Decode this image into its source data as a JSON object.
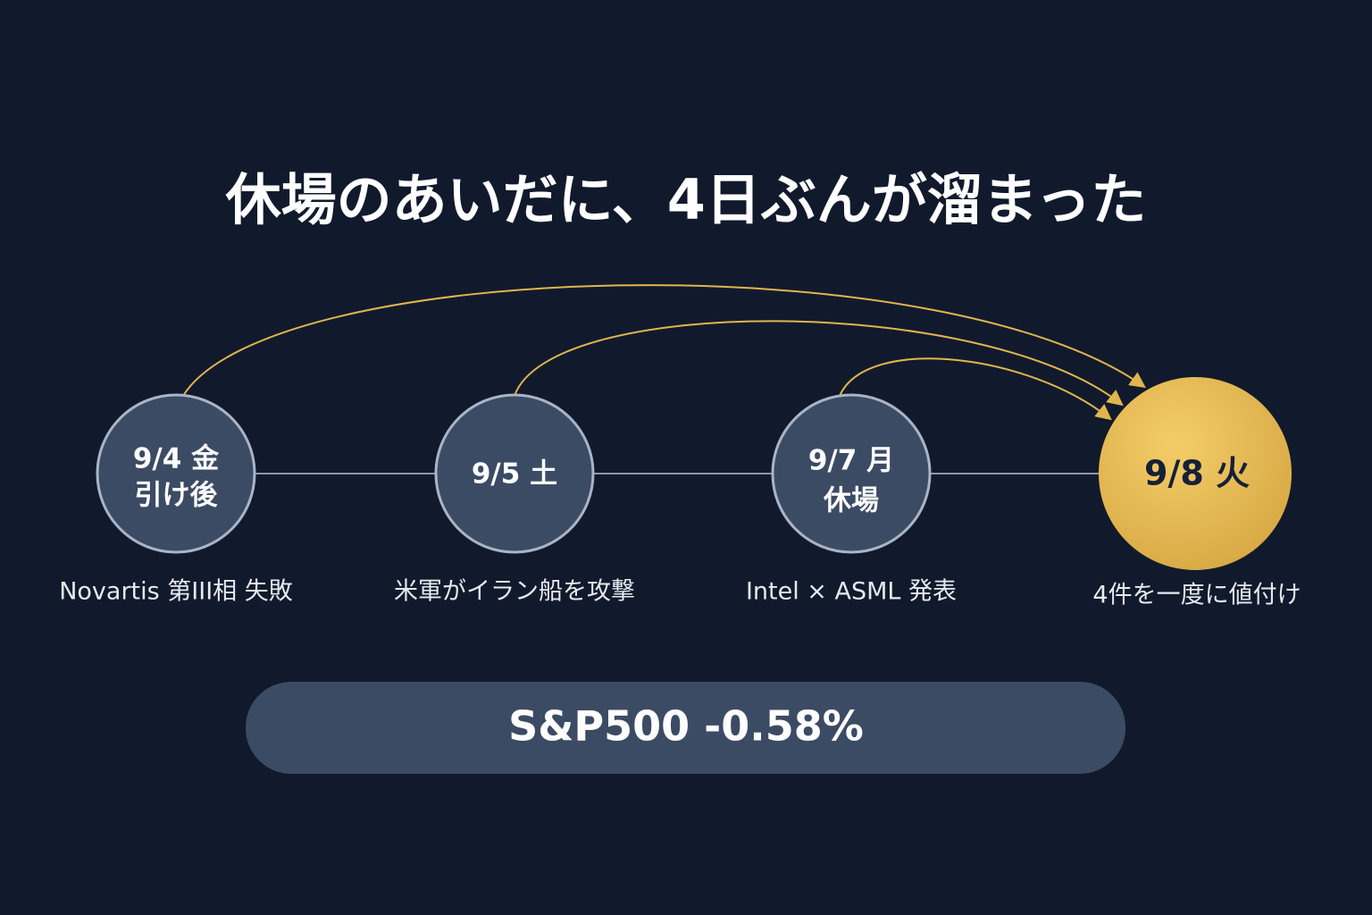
{
  "title": "休場のあいだに、4日ぶんが溜まった",
  "nodes": [
    {
      "label": [
        "9/4 金",
        "引け後"
      ],
      "caption": "Novartis 第III相 失敗"
    },
    {
      "label": [
        "9/5 土"
      ],
      "caption": "米軍がイラン船を攻撃"
    },
    {
      "label": [
        "9/7 月",
        "休場"
      ],
      "caption": "Intel × ASML 発表"
    },
    {
      "label": [
        "9/8 火"
      ],
      "caption": "4件を一度に値付け"
    }
  ],
  "summary": "S&P500 -0.58%"
}
